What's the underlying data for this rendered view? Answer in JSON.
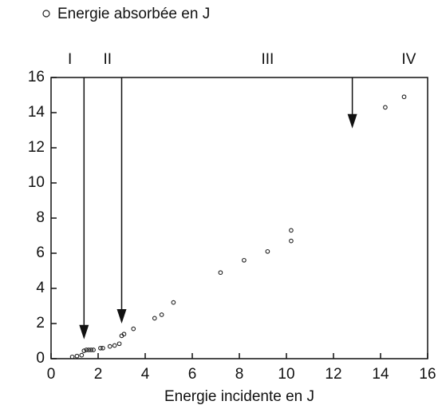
{
  "chart_data": {
    "type": "scatter",
    "legend": "Energie absorbée en J",
    "x_label": "Energie incidente en J",
    "x": [
      0.9,
      1.1,
      1.3,
      1.4,
      1.5,
      1.6,
      1.7,
      1.8,
      2.1,
      2.2,
      2.5,
      2.7,
      2.9,
      3.0,
      3.1,
      3.5,
      4.4,
      4.7,
      5.2,
      7.2,
      8.2,
      9.2,
      10.2,
      10.2,
      14.2,
      15.0
    ],
    "values": [
      0.1,
      0.15,
      0.2,
      0.45,
      0.5,
      0.5,
      0.5,
      0.5,
      0.6,
      0.6,
      0.7,
      0.75,
      0.85,
      1.3,
      1.4,
      1.7,
      2.3,
      2.5,
      3.2,
      4.9,
      5.6,
      6.1,
      6.7,
      7.3,
      14.3,
      14.9
    ],
    "color": "#222222",
    "xlim": [
      0,
      16
    ],
    "ylim": [
      0,
      16
    ],
    "xticks": [
      0,
      2,
      4,
      6,
      8,
      10,
      12,
      14,
      16
    ],
    "yticks": [
      0,
      2,
      4,
      6,
      8,
      10,
      12,
      14,
      16
    ],
    "regions": [
      {
        "label": "I",
        "x": 0.8
      },
      {
        "label": "II",
        "x": 2.4
      },
      {
        "label": "III",
        "x": 9.2
      },
      {
        "label": "IV",
        "x": 15.2
      }
    ],
    "arrows": [
      {
        "x": 1.4,
        "y": 1.1
      },
      {
        "x": 3.0,
        "y": 2.0
      },
      {
        "x": 12.8,
        "y": 13.1
      }
    ]
  }
}
